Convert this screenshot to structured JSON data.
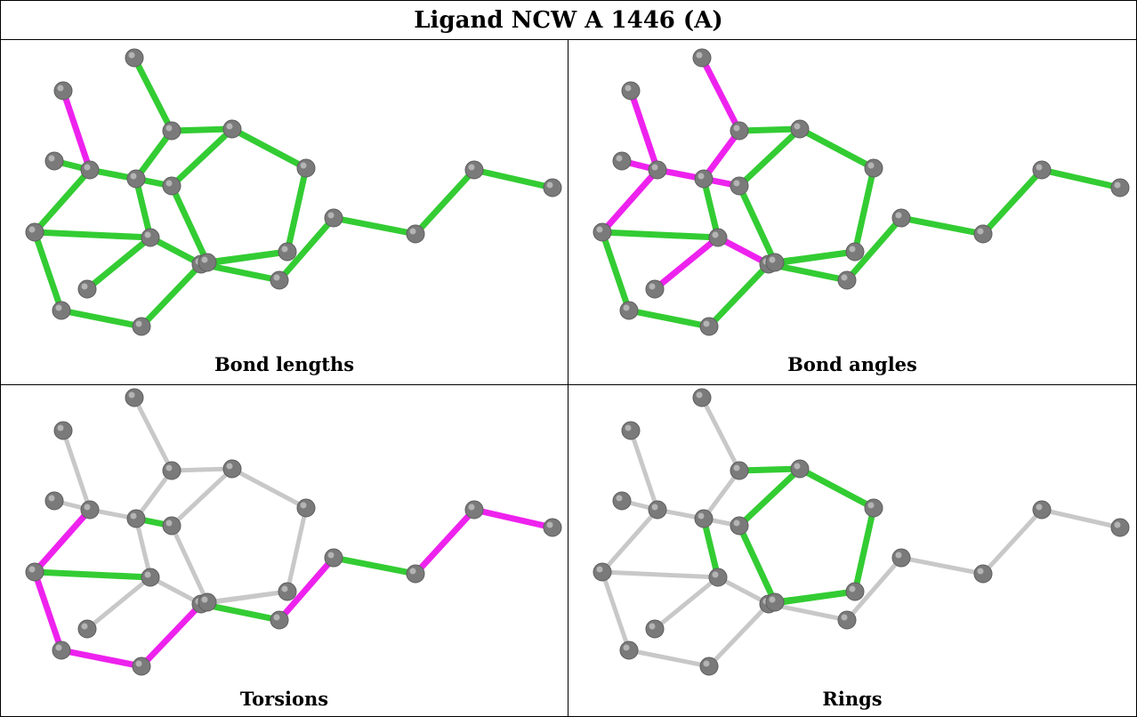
{
  "title": "Ligand NCW A 1446 (A)",
  "colors": {
    "normal": "#33cc33",
    "outlier": "#ee22ee",
    "neutral": "#c8c8c8",
    "atom": "#7a7a7a"
  },
  "panels": [
    {
      "caption": "Bond lengths",
      "default_color": "normal",
      "highlights": {
        "B2": "outlier"
      }
    },
    {
      "caption": "Bond angles",
      "default_color": "normal",
      "highlights": {
        "B1": "outlier",
        "B2": "outlier",
        "B3": "outlier",
        "B4": "outlier",
        "B5": "outlier",
        "B6": "outlier",
        "B7": "outlier",
        "B8": "outlier",
        "B9": "outlier"
      }
    },
    {
      "caption": "Torsions",
      "default_color": "neutral",
      "highlights": {
        "B5": "outlier",
        "B23": "outlier",
        "B21": "outlier",
        "B22": "outlier",
        "B24": "outlier",
        "B25": "outlier",
        "B26": "outlier",
        "B7": "normal",
        "B19": "normal",
        "B20": "normal",
        "B27": "normal"
      }
    },
    {
      "caption": "Rings",
      "default_color": "neutral",
      "highlights": {
        "B10": "normal",
        "B11": "normal",
        "B12": "normal",
        "B13": "normal",
        "B14": "normal",
        "B15": "normal",
        "B16": "normal",
        "B17": "normal",
        "B18": "normal"
      }
    }
  ]
}
